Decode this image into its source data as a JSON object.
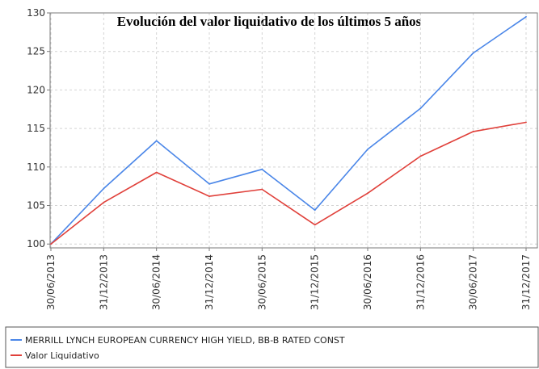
{
  "chart_data": {
    "type": "line",
    "title": "Evolución del valor liquidativo de los últimos 5 años",
    "categories": [
      "30/06/2013",
      "31/12/2013",
      "30/06/2014",
      "31/12/2014",
      "30/06/2015",
      "31/12/2015",
      "30/06/2016",
      "31/12/2016",
      "30/06/2017",
      "31/12/2017"
    ],
    "ylim": [
      99.5,
      130
    ],
    "yticks": [
      100,
      105,
      110,
      115,
      120,
      125,
      130
    ],
    "grid": true,
    "legend_position": "bottom",
    "series": [
      {
        "name": "MERRILL LYNCH EUROPEAN CURRENCY HIGH YIELD, BB-B RATED CONST",
        "color": "#4a86e8",
        "values": [
          100,
          107.2,
          113.4,
          107.8,
          109.7,
          104.4,
          112.3,
          117.6,
          124.8,
          129.5
        ]
      },
      {
        "name": "Valor Liquidativo",
        "color": "#e0403a",
        "values": [
          100,
          105.4,
          109.3,
          106.2,
          107.1,
          102.5,
          106.6,
          111.4,
          114.6,
          115.8
        ]
      }
    ]
  }
}
